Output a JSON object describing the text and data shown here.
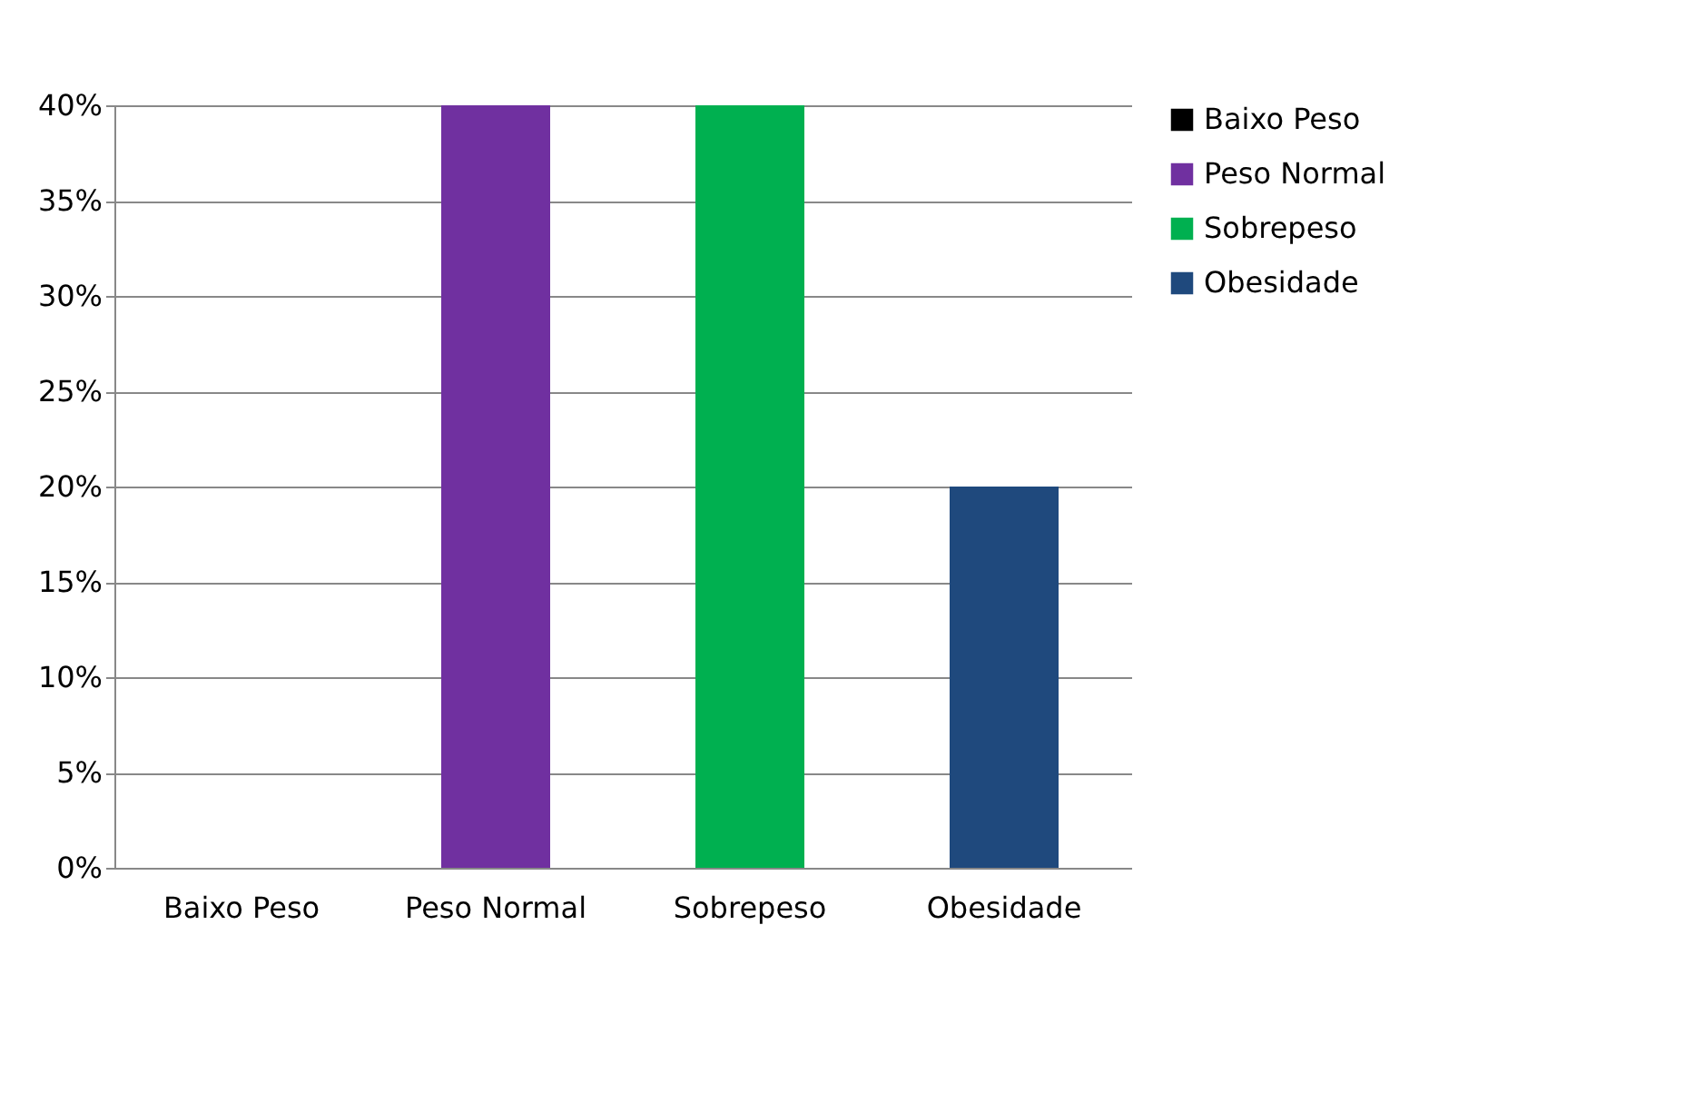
{
  "chart_data": {
    "type": "bar",
    "categories": [
      "Baixo Peso",
      "Peso Normal",
      "Sobrepeso",
      "Obesidade"
    ],
    "series": [
      {
        "name": "Baixo Peso",
        "color": "#000000",
        "values": [
          0,
          null,
          null,
          null
        ]
      },
      {
        "name": "Peso Normal",
        "color": "#7030a0",
        "values": [
          null,
          40,
          null,
          null
        ]
      },
      {
        "name": "Sobrepeso",
        "color": "#00b050",
        "values": [
          null,
          null,
          40,
          null
        ]
      },
      {
        "name": "Obesidade",
        "color": "#1f497d",
        "values": [
          null,
          null,
          null,
          20
        ]
      }
    ],
    "ylim": [
      0,
      40
    ],
    "yticks": [
      {
        "value": 0,
        "label": "0%"
      },
      {
        "value": 5,
        "label": "5%"
      },
      {
        "value": 10,
        "label": "10%"
      },
      {
        "value": 15,
        "label": "15%"
      },
      {
        "value": 20,
        "label": "20%"
      },
      {
        "value": 25,
        "label": "25%"
      },
      {
        "value": 30,
        "label": "30%"
      },
      {
        "value": 35,
        "label": "35%"
      },
      {
        "value": 40,
        "label": "40%"
      }
    ],
    "grid": "y",
    "legend": "right"
  }
}
